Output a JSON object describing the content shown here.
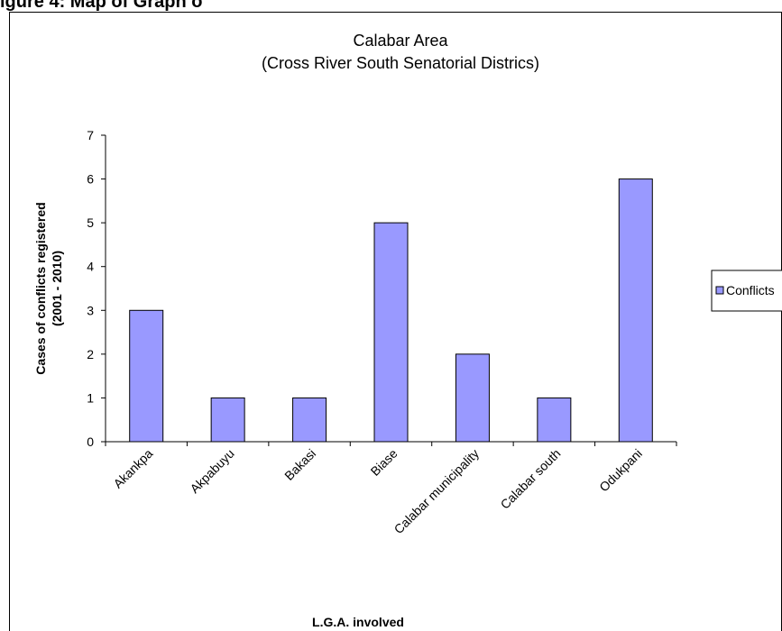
{
  "page": {
    "heading": "igure 4: Map of Graph o"
  },
  "chart_data": {
    "type": "bar",
    "title_lines": [
      "Calabar Area",
      "(Cross River South Senatorial Districs)"
    ],
    "categories": [
      "Akankpa",
      "Akpabuyu",
      "Bakasi",
      "Biase",
      "Calabar municipality",
      "Calabar south",
      "Odukpani"
    ],
    "series": [
      {
        "name": "Conflicts",
        "values": [
          3,
          1,
          1,
          5,
          2,
          1,
          6
        ],
        "color": "#9999ff"
      }
    ],
    "ylabel_lines": [
      "Cases of conflicts registered",
      "(2001 - 2010)"
    ],
    "xlabel": "L.G.A. involved",
    "ylim": [
      0,
      7
    ],
    "yticks": [
      0,
      1,
      2,
      3,
      4,
      5,
      6,
      7
    ],
    "grid": false,
    "legend_position": "right"
  }
}
